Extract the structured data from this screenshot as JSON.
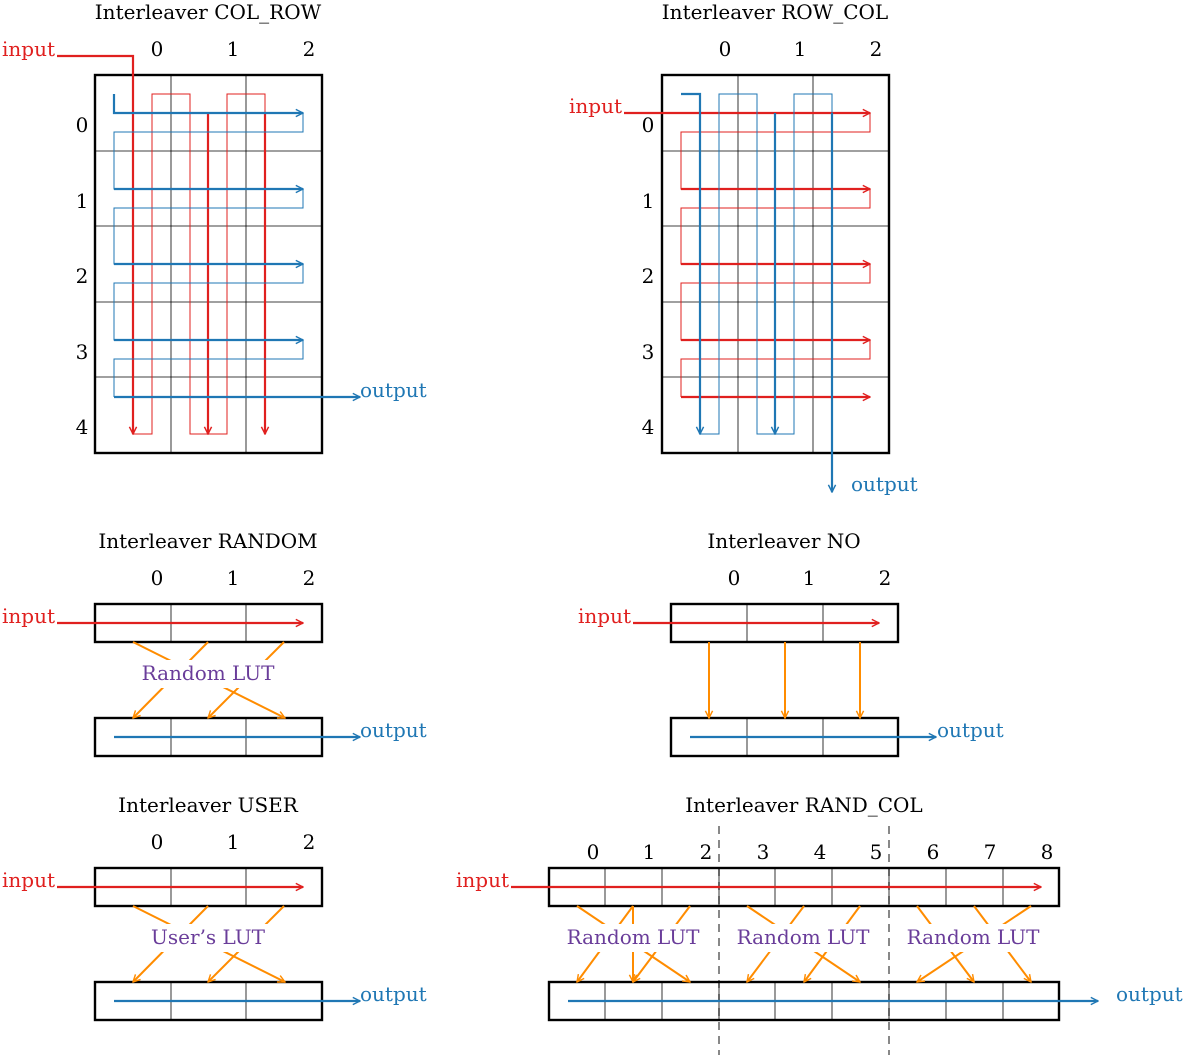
{
  "colors": {
    "red": "#e0201f",
    "blue": "#1f77b4",
    "orange": "#ff8c00",
    "purple": "#6a3d9a",
    "grid": "#000000",
    "dashed": "#555555"
  },
  "labels": {
    "input": "input",
    "output": "output"
  },
  "panels": {
    "col_row": {
      "title": "Interleaver COL_ROW",
      "col_indices": [
        "0",
        "1",
        "2"
      ],
      "row_indices": [
        "0",
        "1",
        "2",
        "3",
        "4"
      ]
    },
    "row_col": {
      "title": "Interleaver ROW_COL",
      "col_indices": [
        "0",
        "1",
        "2"
      ],
      "row_indices": [
        "0",
        "1",
        "2",
        "3",
        "4"
      ]
    },
    "random": {
      "title": "Interleaver RANDOM",
      "col_indices": [
        "0",
        "1",
        "2"
      ],
      "lut": "Random LUT"
    },
    "no": {
      "title": "Interleaver NO",
      "col_indices": [
        "0",
        "1",
        "2"
      ]
    },
    "user": {
      "title": "Interleaver USER",
      "col_indices": [
        "0",
        "1",
        "2"
      ],
      "lut": "User’s LUT"
    },
    "rand_col": {
      "title": "Interleaver RAND_COL",
      "col_indices": [
        "0",
        "1",
        "2",
        "3",
        "4",
        "5",
        "6",
        "7",
        "8"
      ],
      "luts": [
        "Random LUT",
        "Random LUT",
        "Random LUT"
      ]
    }
  }
}
